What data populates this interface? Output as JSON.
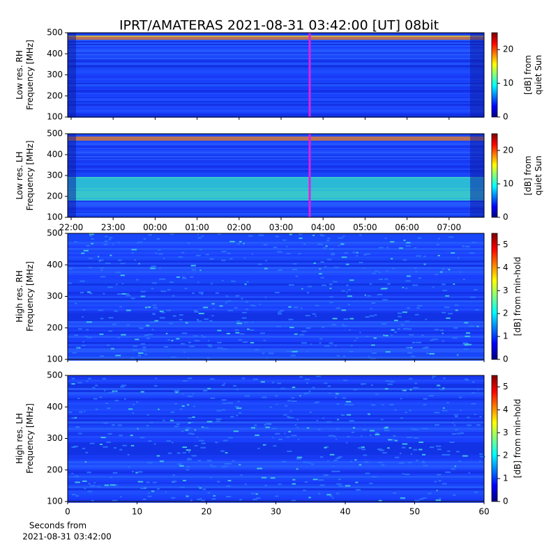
{
  "chart_data": [
    {
      "type": "heatmap",
      "title": "IPRT/AMATERAS 2021-08-31 03:42:00 [UT]   08bit",
      "ylabel": [
        "Low res. RH",
        "Frequency [MHz]"
      ],
      "ylim": [
        100,
        500
      ],
      "yticks": [
        100,
        200,
        300,
        400,
        500
      ],
      "colorbar_label": [
        "[dB] from",
        "quiet Sun"
      ],
      "clim": [
        0,
        25
      ],
      "cticks": [
        0,
        10,
        20
      ]
    },
    {
      "type": "heatmap",
      "ylabel": [
        "Low res. LH",
        "Frequency [MHz]"
      ],
      "ylim": [
        100,
        500
      ],
      "yticks": [
        100,
        200,
        300,
        400,
        500
      ],
      "xticks": [
        "22:00",
        "23:00",
        "00:00",
        "01:00",
        "02:00",
        "03:00",
        "04:00",
        "05:00",
        "06:00",
        "07:00"
      ],
      "colorbar_label": [
        "[dB] from",
        "quiet Sun"
      ],
      "clim": [
        0,
        25
      ],
      "cticks": [
        0,
        10,
        20
      ]
    },
    {
      "type": "heatmap",
      "ylabel": [
        "High res. RH",
        "Frequency [MHz]"
      ],
      "ylim": [
        100,
        500
      ],
      "yticks": [
        100,
        200,
        300,
        400,
        500
      ],
      "colorbar_label": [
        "[dB] from min-hold"
      ],
      "clim": [
        0,
        5.5
      ],
      "cticks": [
        0,
        1,
        2,
        3,
        4,
        5
      ]
    },
    {
      "type": "heatmap",
      "ylabel": [
        "High res. LH",
        "Frequency [MHz]"
      ],
      "ylim": [
        100,
        500
      ],
      "yticks": [
        100,
        200,
        300,
        400,
        500
      ],
      "xlim": [
        0,
        60
      ],
      "xticks": [
        0,
        10,
        20,
        30,
        40,
        50,
        60
      ],
      "xlabel": [
        "Seconds from",
        "2021-08-31 03:42:00"
      ],
      "colorbar_label": [
        "[dB] from min-hold"
      ],
      "clim": [
        0,
        5.5
      ],
      "cticks": [
        0,
        1,
        2,
        3,
        4,
        5
      ]
    }
  ]
}
